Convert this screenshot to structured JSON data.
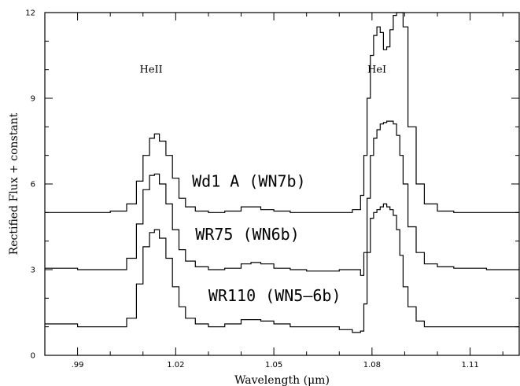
{
  "chart_data": {
    "type": "line",
    "xlabel": "Wavelength (μm)",
    "ylabel": "Rectified Flux + constant",
    "xlim": [
      0.98,
      1.125
    ],
    "ylim": [
      0,
      12
    ],
    "xticks": [
      0.99,
      1.02,
      1.05,
      1.08,
      1.11
    ],
    "xtick_labels": [
      ".99",
      "1.02",
      "1.05",
      "1.08",
      "1.11"
    ],
    "yticks": [
      0,
      3,
      6,
      9,
      12
    ],
    "ytick_labels": [
      "0",
      "3",
      "6",
      "9",
      "12"
    ],
    "grid": false,
    "annotations": [
      {
        "text": "HeII",
        "x": 1.0125,
        "y": 10.0
      },
      {
        "text": "HeI",
        "x": 1.0815,
        "y": 10.0
      }
    ],
    "series": [
      {
        "name": "Wd1 A (WN7b)",
        "label_x": 1.025,
        "label_y": 5.9,
        "x": [
          0.98,
          0.99,
          1.0,
          1.005,
          1.008,
          1.01,
          1.012,
          1.0135,
          1.015,
          1.017,
          1.019,
          1.021,
          1.023,
          1.026,
          1.03,
          1.035,
          1.04,
          1.043,
          1.046,
          1.05,
          1.055,
          1.06,
          1.065,
          1.07,
          1.074,
          1.0765,
          1.0775,
          1.0785,
          1.0795,
          1.0805,
          1.0815,
          1.0825,
          1.0835,
          1.0845,
          1.0855,
          1.0865,
          1.0875,
          1.0885,
          1.0895,
          1.091,
          1.0935,
          1.096,
          1.1,
          1.105,
          1.11,
          1.115,
          1.125
        ],
        "y": [
          5.0,
          5.0,
          5.05,
          5.3,
          6.1,
          7.0,
          7.6,
          7.75,
          7.5,
          7.0,
          6.2,
          5.5,
          5.2,
          5.05,
          5.0,
          5.05,
          5.2,
          5.2,
          5.1,
          5.05,
          5.0,
          5.0,
          5.0,
          5.0,
          5.1,
          5.6,
          7.0,
          9.0,
          10.5,
          11.2,
          11.5,
          11.3,
          10.7,
          10.8,
          11.4,
          11.9,
          12.0,
          12.0,
          11.5,
          8.0,
          6.0,
          5.3,
          5.05,
          5.0,
          5.0,
          5.0,
          5.0
        ]
      },
      {
        "name": "WR75 (WN6b)",
        "label_x": 1.026,
        "label_y": 4.05,
        "x": [
          0.98,
          0.99,
          1.0,
          1.005,
          1.008,
          1.01,
          1.012,
          1.0135,
          1.015,
          1.017,
          1.019,
          1.021,
          1.023,
          1.026,
          1.03,
          1.035,
          1.04,
          1.043,
          1.046,
          1.05,
          1.055,
          1.06,
          1.065,
          1.07,
          1.074,
          1.0765,
          1.0775,
          1.0785,
          1.0795,
          1.0805,
          1.0815,
          1.0825,
          1.0835,
          1.0845,
          1.0855,
          1.0865,
          1.0875,
          1.0885,
          1.0895,
          1.091,
          1.0935,
          1.096,
          1.1,
          1.105,
          1.11,
          1.115,
          1.125
        ],
        "y": [
          3.05,
          3.0,
          3.0,
          3.4,
          4.6,
          5.8,
          6.3,
          6.35,
          6.0,
          5.3,
          4.4,
          3.7,
          3.3,
          3.1,
          3.0,
          3.05,
          3.2,
          3.25,
          3.2,
          3.05,
          3.0,
          2.95,
          2.95,
          3.0,
          3.0,
          2.8,
          3.6,
          5.5,
          7.0,
          7.6,
          7.9,
          8.1,
          8.15,
          8.2,
          8.2,
          8.1,
          7.7,
          7.0,
          6.0,
          4.5,
          3.6,
          3.2,
          3.1,
          3.05,
          3.05,
          3.0,
          3.05
        ]
      },
      {
        "name": "WR110 (WN5–6b)",
        "label_x": 1.03,
        "label_y": 1.9,
        "x": [
          0.98,
          0.99,
          1.0,
          1.005,
          1.008,
          1.01,
          1.012,
          1.0135,
          1.015,
          1.017,
          1.019,
          1.021,
          1.023,
          1.026,
          1.03,
          1.035,
          1.04,
          1.043,
          1.046,
          1.05,
          1.055,
          1.06,
          1.065,
          1.07,
          1.074,
          1.0765,
          1.0775,
          1.0785,
          1.0795,
          1.0805,
          1.0815,
          1.0825,
          1.0835,
          1.0845,
          1.0855,
          1.0865,
          1.0875,
          1.0885,
          1.0895,
          1.091,
          1.0935,
          1.096,
          1.1,
          1.105,
          1.11,
          1.115,
          1.125
        ],
        "y": [
          1.1,
          1.0,
          1.0,
          1.3,
          2.5,
          3.8,
          4.3,
          4.4,
          4.1,
          3.4,
          2.4,
          1.7,
          1.3,
          1.1,
          1.0,
          1.1,
          1.25,
          1.25,
          1.2,
          1.1,
          1.0,
          1.0,
          1.0,
          0.9,
          0.8,
          0.85,
          1.8,
          3.6,
          4.8,
          5.0,
          5.1,
          5.2,
          5.3,
          5.2,
          5.1,
          4.9,
          4.4,
          3.5,
          2.4,
          1.7,
          1.2,
          1.0,
          1.0,
          1.0,
          1.0,
          1.0,
          1.0
        ]
      }
    ]
  }
}
